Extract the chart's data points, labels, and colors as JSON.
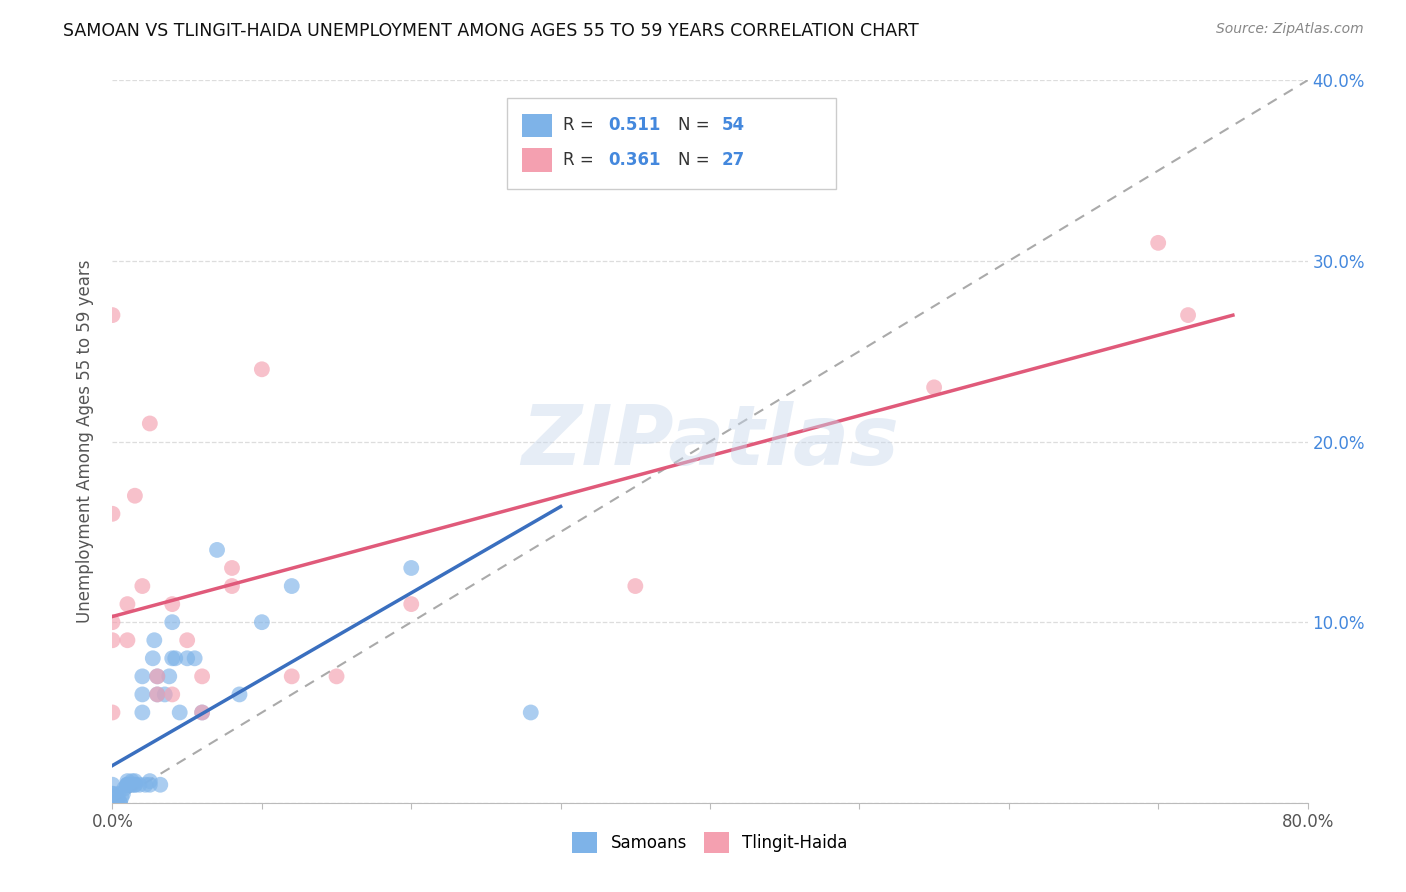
{
  "title": "SAMOAN VS TLINGIT-HAIDA UNEMPLOYMENT AMONG AGES 55 TO 59 YEARS CORRELATION CHART",
  "source": "Source: ZipAtlas.com",
  "ylabel": "Unemployment Among Ages 55 to 59 years",
  "xlim": [
    0.0,
    0.8
  ],
  "ylim": [
    0.0,
    0.4
  ],
  "xticks": [
    0.0,
    0.1,
    0.2,
    0.3,
    0.4,
    0.5,
    0.6,
    0.7,
    0.8
  ],
  "xtick_labels": [
    "0.0%",
    "",
    "",
    "",
    "",
    "",
    "",
    "",
    "80.0%"
  ],
  "yticks": [
    0.0,
    0.1,
    0.2,
    0.3,
    0.4
  ],
  "ytick_labels_right": [
    "",
    "10.0%",
    "20.0%",
    "30.0%",
    "40.0%"
  ],
  "samoan_R": 0.511,
  "samoan_N": 54,
  "tlingit_R": 0.361,
  "tlingit_N": 27,
  "samoan_color": "#7EB3E8",
  "tlingit_color": "#F4A0B0",
  "samoan_line_color": "#3A6FBF",
  "tlingit_line_color": "#E05A7A",
  "ref_line_color": "#AAAAAA",
  "background_color": "#FFFFFF",
  "watermark": "ZIPatlas",
  "samoan_x": [
    0.0,
    0.0,
    0.0,
    0.0,
    0.0,
    0.0,
    0.0,
    0.0,
    0.003,
    0.003,
    0.004,
    0.005,
    0.005,
    0.006,
    0.007,
    0.008,
    0.01,
    0.01,
    0.01,
    0.01,
    0.01,
    0.012,
    0.013,
    0.013,
    0.015,
    0.015,
    0.015,
    0.018,
    0.02,
    0.02,
    0.02,
    0.022,
    0.025,
    0.025,
    0.027,
    0.028,
    0.03,
    0.03,
    0.032,
    0.035,
    0.038,
    0.04,
    0.04,
    0.042,
    0.045,
    0.05,
    0.055,
    0.06,
    0.07,
    0.085,
    0.1,
    0.12,
    0.2,
    0.28
  ],
  "samoan_y": [
    0.0,
    0.0,
    0.0,
    0.0,
    0.0,
    0.005,
    0.005,
    0.01,
    0.0,
    0.003,
    0.005,
    0.0,
    0.0,
    0.003,
    0.005,
    0.008,
    0.01,
    0.01,
    0.01,
    0.01,
    0.012,
    0.01,
    0.01,
    0.012,
    0.01,
    0.01,
    0.012,
    0.01,
    0.05,
    0.06,
    0.07,
    0.01,
    0.01,
    0.012,
    0.08,
    0.09,
    0.06,
    0.07,
    0.01,
    0.06,
    0.07,
    0.08,
    0.1,
    0.08,
    0.05,
    0.08,
    0.08,
    0.05,
    0.14,
    0.06,
    0.1,
    0.12,
    0.13,
    0.05
  ],
  "tlingit_x": [
    0.0,
    0.0,
    0.0,
    0.0,
    0.0,
    0.01,
    0.01,
    0.015,
    0.02,
    0.025,
    0.03,
    0.03,
    0.04,
    0.04,
    0.05,
    0.06,
    0.06,
    0.08,
    0.08,
    0.1,
    0.12,
    0.15,
    0.2,
    0.35,
    0.55,
    0.7,
    0.72
  ],
  "tlingit_y": [
    0.05,
    0.09,
    0.1,
    0.16,
    0.27,
    0.09,
    0.11,
    0.17,
    0.12,
    0.21,
    0.06,
    0.07,
    0.06,
    0.11,
    0.09,
    0.05,
    0.07,
    0.12,
    0.13,
    0.24,
    0.07,
    0.07,
    0.11,
    0.12,
    0.23,
    0.31,
    0.27
  ]
}
